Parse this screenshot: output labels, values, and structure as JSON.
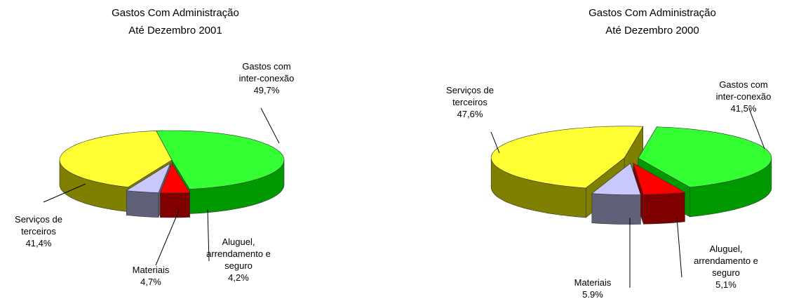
{
  "chart_data": [
    {
      "type": "pie",
      "title": "Gastos Com Administração",
      "subtitle": "Até Dezembro 2001",
      "categories": [
        "Gastos com inter-conexão",
        "Aluguel, arrendamento e seguro",
        "Materiais",
        "Serviços de terceiros"
      ],
      "values": [
        49.7,
        4.2,
        4.7,
        41.4
      ],
      "value_labels": [
        "49,7%",
        "4,2%",
        "4,7%",
        "41,4%"
      ],
      "colors": [
        "#33ff33",
        "#ff0000",
        "#c8c8ff",
        "#ffff33"
      ],
      "side_colors": [
        "#009900",
        "#800000",
        "#606078",
        "#808000"
      ]
    },
    {
      "type": "pie",
      "title": "Gastos Com Administração",
      "subtitle": "Até Dezembro 2000",
      "categories": [
        "Gastos com inter-conexão",
        "Aluguel, arrendamento e seguro",
        "Materiais",
        "Serviços de terceiros"
      ],
      "values": [
        41.5,
        5.1,
        5.9,
        47.6
      ],
      "value_labels": [
        "41,5%",
        "5,1%",
        "5.9%",
        "47,6%"
      ],
      "colors": [
        "#33ff33",
        "#ff0000",
        "#c8c8ff",
        "#ffff33"
      ],
      "side_colors": [
        "#009900",
        "#800000",
        "#606078",
        "#808000"
      ]
    }
  ]
}
